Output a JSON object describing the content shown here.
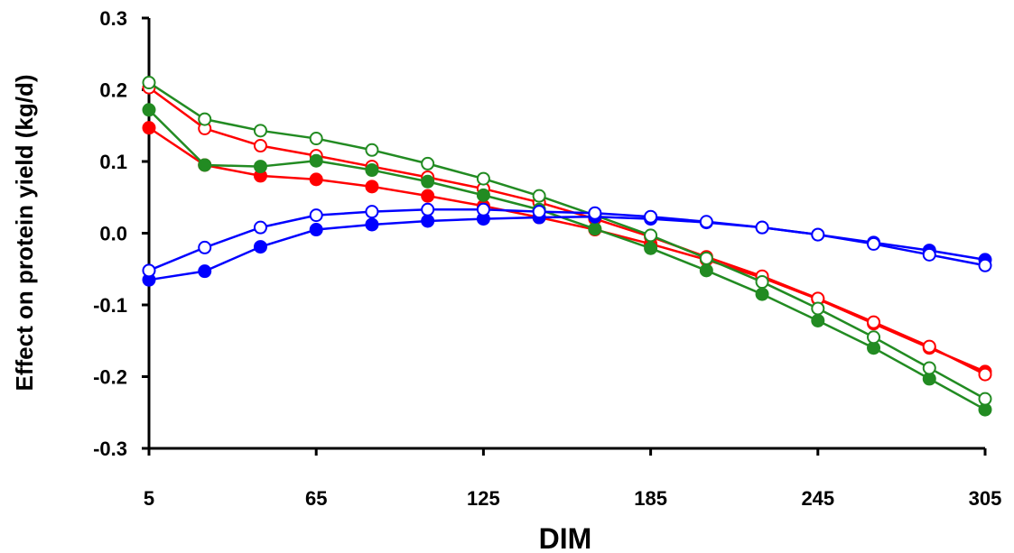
{
  "chart_data": {
    "type": "line",
    "title": "",
    "xlabel": "DIM",
    "ylabel": "Effect on protein yield (kg/d)",
    "x": [
      5,
      25,
      45,
      65,
      85,
      105,
      125,
      145,
      165,
      185,
      205,
      225,
      245,
      265,
      285,
      305
    ],
    "xlim": [
      5,
      305
    ],
    "ylim": [
      -0.3,
      0.3
    ],
    "x_ticks": [
      5,
      65,
      125,
      185,
      245,
      305
    ],
    "x_tick_labels": [
      "5",
      "65",
      "125",
      "185",
      "245",
      "305"
    ],
    "y_ticks": [
      -0.3,
      -0.2,
      -0.1,
      0.0,
      0.1,
      0.2,
      0.3
    ],
    "y_tick_labels": [
      "-0.3",
      "-0.2",
      "-0.1",
      "0.0",
      "0.1",
      "0.2",
      "0.3"
    ],
    "grid": false,
    "legend": "none",
    "series": [
      {
        "color": "#ff0000",
        "marker": "filled",
        "values": [
          0.147,
          0.095,
          0.08,
          0.075,
          0.065,
          0.052,
          0.038,
          0.022,
          0.005,
          -0.015,
          -0.037,
          -0.062,
          -0.092,
          -0.126,
          -0.16,
          -0.193
        ]
      },
      {
        "color": "#ff0000",
        "marker": "open",
        "values": [
          0.203,
          0.146,
          0.122,
          0.108,
          0.093,
          0.078,
          0.062,
          0.043,
          0.02,
          -0.005,
          -0.033,
          -0.06,
          -0.091,
          -0.124,
          -0.158,
          -0.197
        ]
      },
      {
        "color": "#228b22",
        "marker": "filled",
        "values": [
          0.172,
          0.095,
          0.093,
          0.101,
          0.088,
          0.072,
          0.053,
          0.033,
          0.006,
          -0.021,
          -0.052,
          -0.085,
          -0.122,
          -0.16,
          -0.203,
          -0.246
        ]
      },
      {
        "color": "#228b22",
        "marker": "open",
        "values": [
          0.21,
          0.159,
          0.143,
          0.132,
          0.116,
          0.097,
          0.076,
          0.052,
          0.025,
          -0.003,
          -0.035,
          -0.068,
          -0.105,
          -0.145,
          -0.188,
          -0.231
        ]
      },
      {
        "color": "#0000ff",
        "marker": "filled",
        "values": [
          -0.065,
          -0.053,
          -0.019,
          0.005,
          0.012,
          0.017,
          0.02,
          0.022,
          0.023,
          0.02,
          0.015,
          0.008,
          -0.002,
          -0.013,
          -0.024,
          -0.037
        ]
      },
      {
        "color": "#0000ff",
        "marker": "open",
        "values": [
          -0.052,
          -0.02,
          0.008,
          0.025,
          0.03,
          0.033,
          0.033,
          0.03,
          0.028,
          0.023,
          0.016,
          0.008,
          -0.002,
          -0.015,
          -0.03,
          -0.045
        ]
      }
    ]
  }
}
